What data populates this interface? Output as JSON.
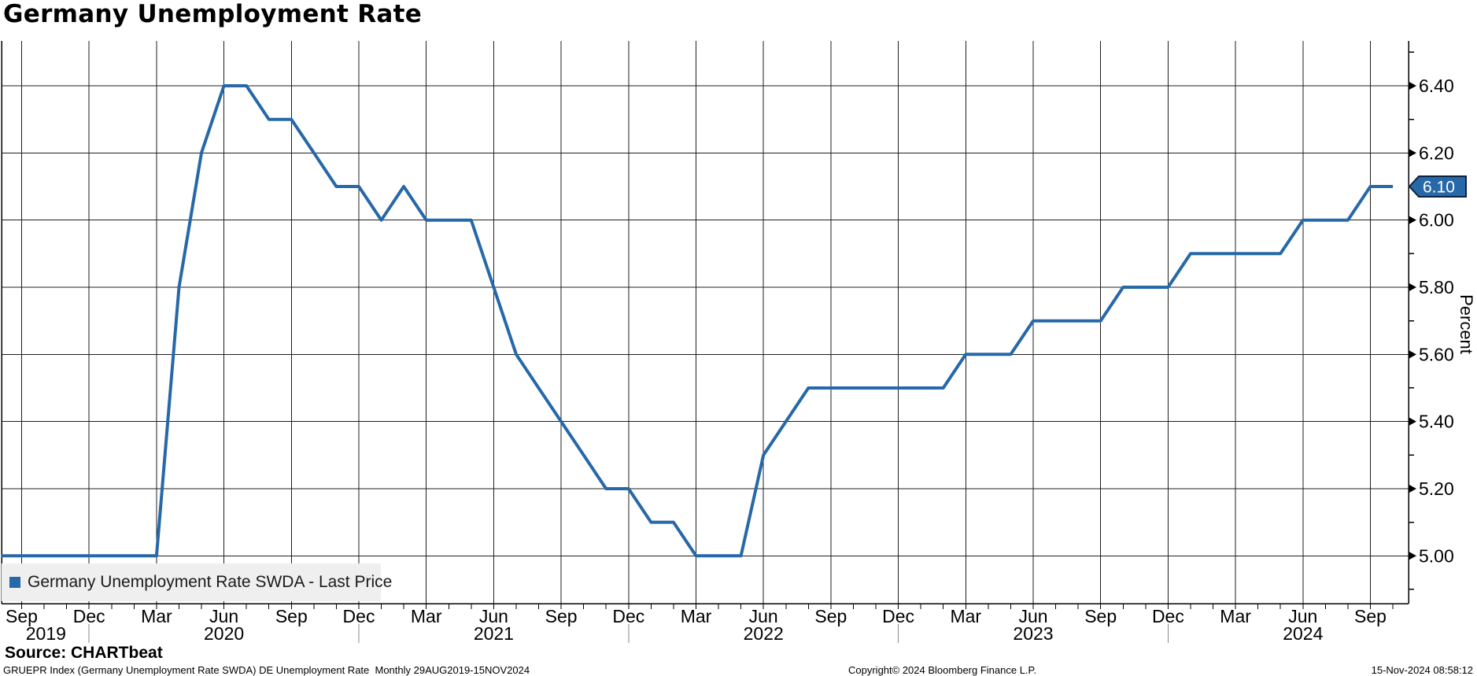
{
  "title": "Germany Unemployment Rate",
  "legend": {
    "label": "Germany Unemployment Rate SWDA - Last Price"
  },
  "source_line": "Source: CHARTbeat",
  "footer": {
    "left": "GRUEPR Index (Germany Unemployment Rate SWDA) DE Unemployment Rate  Monthly 29AUG2019-15NOV2024",
    "center": "Copyright© 2024 Bloomberg Finance L.P.",
    "right": "15-Nov-2024 08:58:12"
  },
  "y_axis": {
    "title": "Percent",
    "tick_labels": [
      "6.40",
      "6.20",
      "6.00",
      "5.80",
      "5.60",
      "5.40",
      "5.20",
      "5.00"
    ],
    "minor_ticks": [
      6.5,
      6.3,
      6.1,
      5.9,
      5.7,
      5.5,
      5.3,
      5.1,
      4.9
    ]
  },
  "last_price": "6.10",
  "colors": {
    "line": "#2668a8",
    "tag_fill": "#2668a8",
    "tag_border": "#0d2240",
    "grid": "#1f1f1f",
    "axis": "#000000",
    "legend_bg": "#efefef",
    "year_divider": "#8a8a8a"
  },
  "chart_data": {
    "type": "line",
    "title": "Germany Unemployment Rate",
    "series_name": "Germany Unemployment Rate SWDA - Last Price",
    "ylabel": "Percent",
    "frequency": "Monthly",
    "date_range": "29AUG2019-15NOV2024",
    "ylim": [
      4.86,
      6.53
    ],
    "grid": true,
    "legend_position": "bottom-left",
    "months": [
      "Aug 2019",
      "Sep 2019",
      "Oct 2019",
      "Nov 2019",
      "Dec 2019",
      "Jan 2020",
      "Feb 2020",
      "Mar 2020",
      "Apr 2020",
      "May 2020",
      "Jun 2020",
      "Jul 2020",
      "Aug 2020",
      "Sep 2020",
      "Oct 2020",
      "Nov 2020",
      "Dec 2020",
      "Jan 2021",
      "Feb 2021",
      "Mar 2021",
      "Apr 2021",
      "May 2021",
      "Jun 2021",
      "Jul 2021",
      "Aug 2021",
      "Sep 2021",
      "Oct 2021",
      "Nov 2021",
      "Dec 2021",
      "Jan 2022",
      "Feb 2022",
      "Mar 2022",
      "Apr 2022",
      "May 2022",
      "Jun 2022",
      "Jul 2022",
      "Aug 2022",
      "Sep 2022",
      "Oct 2022",
      "Nov 2022",
      "Dec 2022",
      "Jan 2023",
      "Feb 2023",
      "Mar 2023",
      "Apr 2023",
      "May 2023",
      "Jun 2023",
      "Jul 2023",
      "Aug 2023",
      "Sep 2023",
      "Oct 2023",
      "Nov 2023",
      "Dec 2023",
      "Jan 2024",
      "Feb 2024",
      "Mar 2024",
      "Apr 2024",
      "May 2024",
      "Jun 2024",
      "Jul 2024",
      "Aug 2024",
      "Sep 2024",
      "Oct 2024"
    ],
    "values": [
      5.0,
      5.0,
      5.0,
      5.0,
      5.0,
      5.0,
      5.0,
      5.0,
      5.8,
      6.2,
      6.4,
      6.4,
      6.3,
      6.3,
      6.2,
      6.1,
      6.1,
      6.0,
      6.1,
      6.0,
      6.0,
      6.0,
      5.8,
      5.6,
      5.5,
      5.4,
      5.3,
      5.2,
      5.2,
      5.1,
      5.1,
      5.0,
      5.0,
      5.0,
      5.3,
      5.4,
      5.5,
      5.5,
      5.5,
      5.5,
      5.5,
      5.5,
      5.5,
      5.6,
      5.6,
      5.6,
      5.7,
      5.7,
      5.7,
      5.7,
      5.8,
      5.8,
      5.8,
      5.9,
      5.9,
      5.9,
      5.9,
      5.9,
      6.0,
      6.0,
      6.0,
      6.1,
      6.1
    ],
    "last_price": 6.1,
    "x_quarter_labels": [
      "Sep",
      "Dec",
      "Mar",
      "Jun",
      "Sep",
      "Dec",
      "Mar",
      "Jun",
      "Sep",
      "Dec",
      "Mar",
      "Jun",
      "Sep",
      "Dec",
      "Mar",
      "Jun",
      "Sep",
      "Dec",
      "Mar",
      "Jun",
      "Sep"
    ],
    "x_year_labels": [
      {
        "text": "2019",
        "xq": 0.36
      },
      {
        "text": "2020",
        "xq": 3
      },
      {
        "text": "2021",
        "xq": 7
      },
      {
        "text": "2022",
        "xq": 11
      },
      {
        "text": "2023",
        "xq": 15
      },
      {
        "text": "2024",
        "xq": 19
      }
    ]
  }
}
